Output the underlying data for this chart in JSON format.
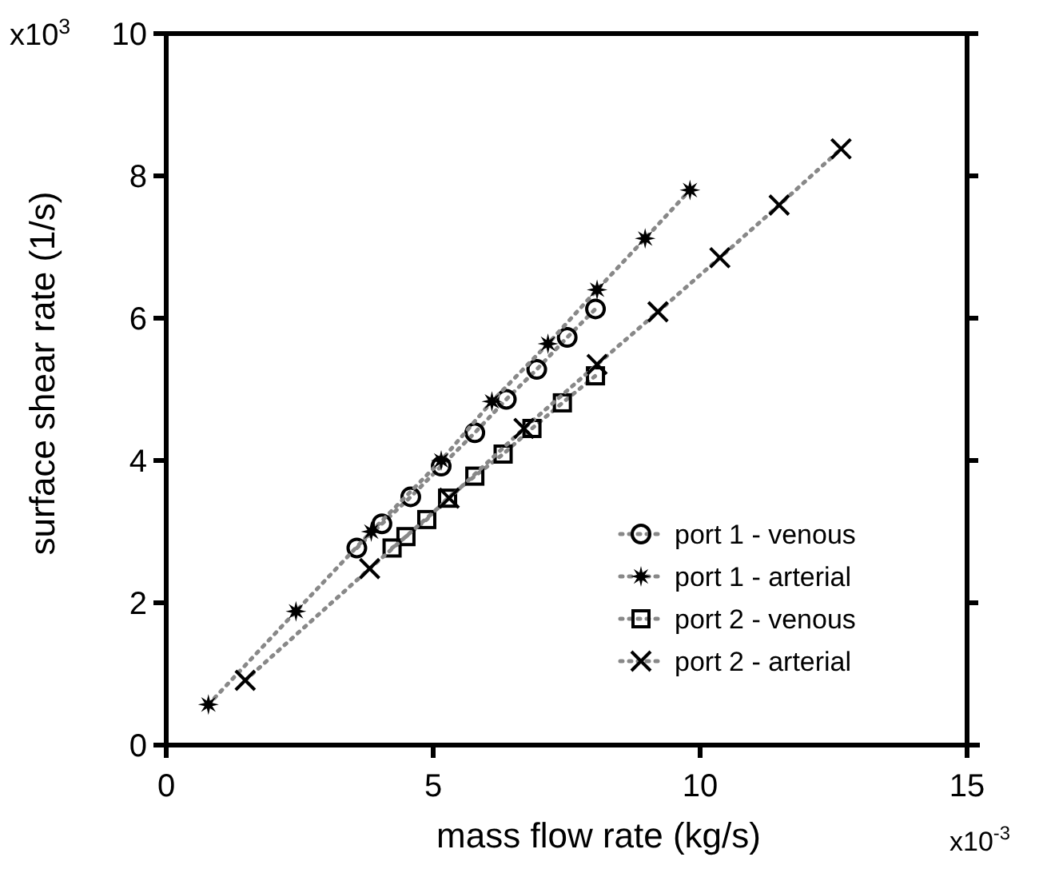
{
  "chart_data": {
    "type": "line",
    "xlabel": "mass flow rate (kg/s)",
    "ylabel": "surface shear rate (1/s)",
    "annotations": [
      "x10$^{3}$",
      "x10$^{-3}$"
    ],
    "xlim": [
      0,
      15
    ],
    "xticks": [
      0,
      5,
      10,
      15
    ],
    "ylim": [
      0,
      10
    ],
    "yticks": [
      0,
      2,
      4,
      6,
      8,
      10
    ],
    "grid": false,
    "legend": "bottom right",
    "line_style": "dotted",
    "series": [
      {
        "name": "port 1 - venous",
        "color": "#000000",
        "marker": "circle",
        "x": [
          3.57,
          4.04,
          4.58,
          5.15,
          5.78,
          6.37,
          6.94,
          7.51,
          8.04
        ],
        "values": [
          2.77,
          3.11,
          3.49,
          3.92,
          4.39,
          4.86,
          5.28,
          5.73,
          6.13
        ]
      },
      {
        "name": "port 1 - arterial",
        "color": "#000000",
        "marker": "star",
        "x": [
          0.79,
          2.43,
          3.84,
          5.15,
          6.1,
          7.15,
          8.07,
          8.97,
          9.81
        ],
        "values": [
          0.57,
          1.88,
          3.0,
          4.0,
          4.83,
          5.64,
          6.4,
          7.12,
          7.8
        ]
      },
      {
        "name": "port 2 - venous",
        "color": "#000000",
        "marker": "square",
        "x": [
          4.23,
          4.49,
          4.88,
          5.27,
          5.78,
          6.31,
          6.85,
          7.42,
          8.04
        ],
        "values": [
          2.77,
          2.93,
          3.17,
          3.47,
          3.78,
          4.09,
          4.45,
          4.81,
          5.19
        ]
      },
      {
        "name": "port 2 - arterial",
        "color": "#000000",
        "marker": "cross",
        "x": [
          1.48,
          3.81,
          5.3,
          6.7,
          8.07,
          9.21,
          10.37,
          11.48,
          12.64
        ],
        "values": [
          0.91,
          2.48,
          3.47,
          4.45,
          5.35,
          6.09,
          6.85,
          7.59,
          8.38
        ]
      }
    ]
  }
}
